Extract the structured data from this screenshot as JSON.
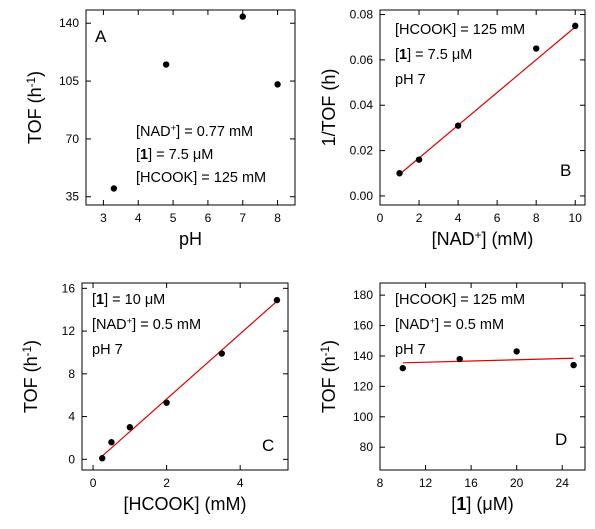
{
  "colors": {
    "axis": "#000000",
    "points": "#000000",
    "fit_line": "#e00000",
    "background": "#ffffff"
  },
  "chart_data": [
    {
      "panel": "A",
      "type": "scatter",
      "xlabel": "pH",
      "ylabel": "TOF (h-1)",
      "xlim": [
        2.5,
        8.5
      ],
      "ylim": [
        30,
        148
      ],
      "xticks": [
        3,
        4,
        5,
        6,
        7,
        8
      ],
      "yticks": [
        35,
        70,
        105,
        140
      ],
      "points": [
        [
          3.3,
          40
        ],
        [
          4.8,
          115
        ],
        [
          7.0,
          144
        ],
        [
          8.0,
          103
        ]
      ],
      "annotations": [
        "[NAD+] = 0.77 mM",
        "[1] = 7.5 μM",
        "[HCOOK] = 125 mM"
      ]
    },
    {
      "panel": "B",
      "type": "scatter",
      "xlabel": "[NAD+] (mM)",
      "ylabel": "1/TOF (h)",
      "xlim": [
        0,
        10.5
      ],
      "ylim": [
        -0.004,
        0.082
      ],
      "xticks": [
        0,
        2,
        4,
        6,
        8,
        10
      ],
      "yticks": [
        0.0,
        0.02,
        0.04,
        0.06,
        0.08
      ],
      "points": [
        [
          1,
          0.01
        ],
        [
          2,
          0.016
        ],
        [
          4,
          0.031
        ],
        [
          8,
          0.065
        ],
        [
          10,
          0.075
        ]
      ],
      "fit_line": [
        [
          1,
          0.0095
        ],
        [
          10,
          0.0745
        ]
      ],
      "annotations": [
        "[HCOOK] = 125 mM",
        "[1] = 7.5 μM",
        "pH 7"
      ]
    },
    {
      "panel": "C",
      "type": "scatter",
      "xlabel": "[HCOOK] (mM)",
      "ylabel": "TOF (h-1)",
      "xlim": [
        -0.3,
        5.3
      ],
      "ylim": [
        -1,
        16.5
      ],
      "xticks": [
        0,
        2,
        4
      ],
      "yticks": [
        0,
        4,
        8,
        12,
        16
      ],
      "points": [
        [
          0.25,
          0.1
        ],
        [
          0.5,
          1.6
        ],
        [
          1.0,
          3.0
        ],
        [
          2.0,
          5.3
        ],
        [
          3.5,
          9.9
        ],
        [
          5.0,
          14.9
        ]
      ],
      "fit_line": [
        [
          0.25,
          0.3
        ],
        [
          5.0,
          14.8
        ]
      ],
      "annotations": [
        "[1] = 10 μM",
        "[NAD+] = 0.5 mM",
        "pH 7"
      ]
    },
    {
      "panel": "D",
      "type": "scatter",
      "xlabel": "[1] (μM)",
      "ylabel": "TOF (h-1)",
      "xlim": [
        8,
        26
      ],
      "ylim": [
        65,
        188
      ],
      "xticks": [
        8,
        12,
        16,
        20,
        24
      ],
      "yticks": [
        80,
        100,
        120,
        140,
        160,
        180
      ],
      "points": [
        [
          10,
          132
        ],
        [
          15,
          138
        ],
        [
          20,
          143
        ],
        [
          25,
          134
        ]
      ],
      "fit_line": [
        [
          10,
          135.5
        ],
        [
          25,
          138.5
        ]
      ],
      "annotations": [
        "[HCOOK] = 125 mM",
        "[NAD+] = 0.5 mM",
        "pH 7"
      ]
    }
  ]
}
